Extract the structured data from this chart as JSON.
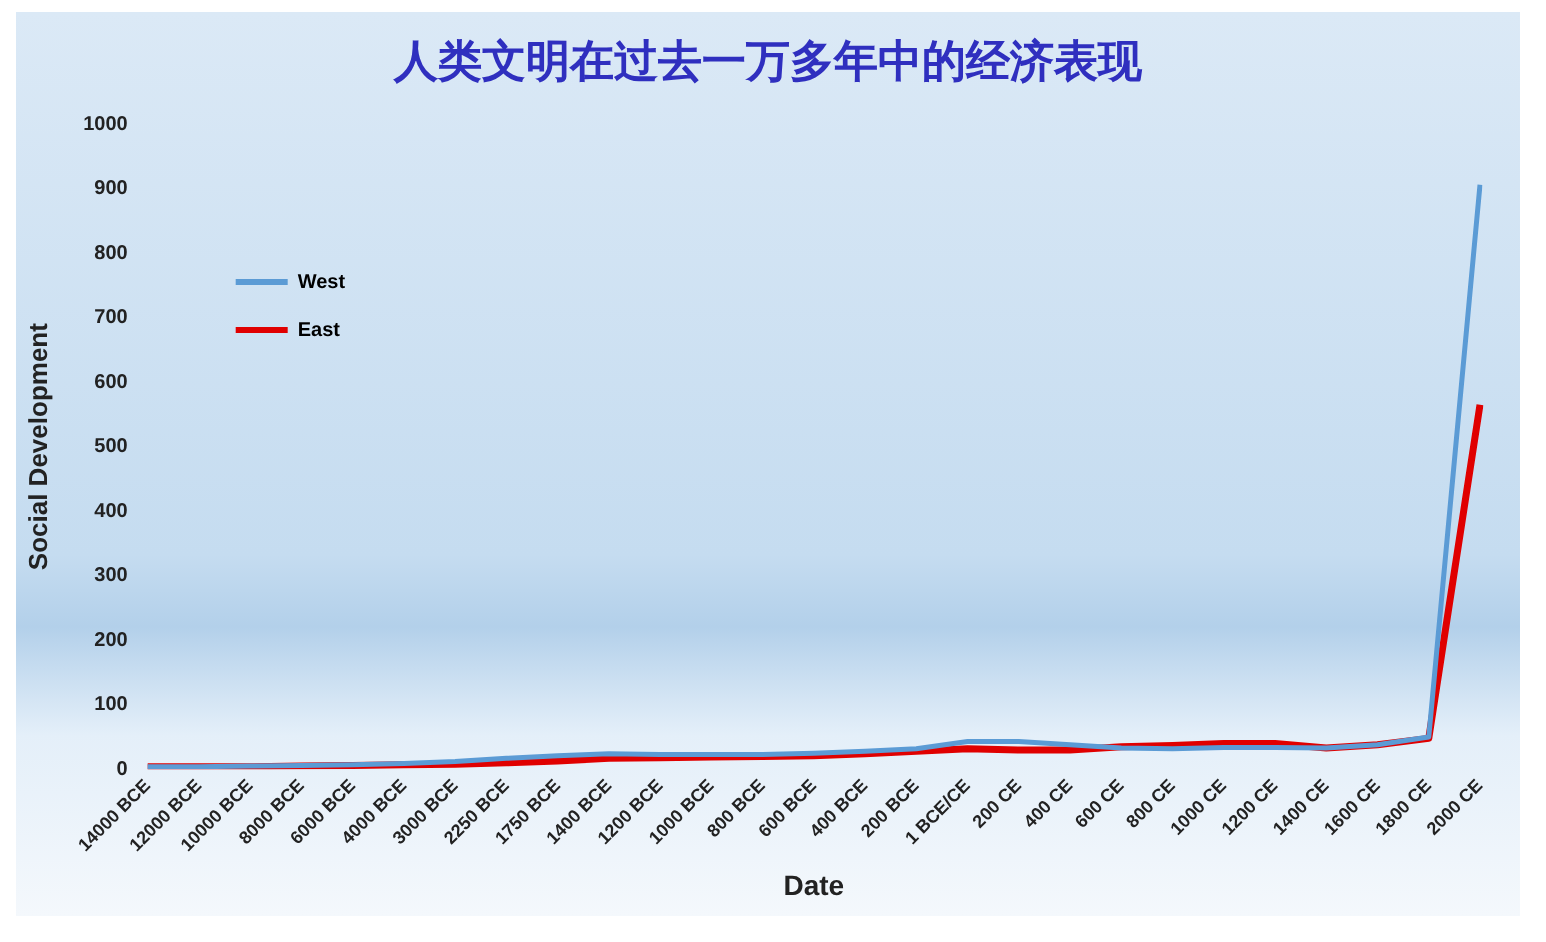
{
  "chart_data": {
    "type": "line",
    "title": "人类文明在过去一万多年中的经济表现",
    "xlabel": "Date",
    "ylabel": "Social Development",
    "categories": [
      "14000 BCE",
      "12000 BCE",
      "10000 BCE",
      "8000 BCE",
      "6000 BCE",
      "4000 BCE",
      "3000 BCE",
      "2250 BCE",
      "1750 BCE",
      "1400 BCE",
      "1200 BCE",
      "1000 BCE",
      "800 BCE",
      "600 BCE",
      "400 BCE",
      "200 BCE",
      "1 BCE/CE",
      "200 CE",
      "400 CE",
      "600 CE",
      "800 CE",
      "1000 CE",
      "1200 CE",
      "1400 CE",
      "1600 CE",
      "1800 CE",
      "2000 CE"
    ],
    "series": [
      {
        "name": "West",
        "color": "#5b9bd5",
        "values": [
          4,
          4,
          5,
          6,
          7,
          9,
          12,
          17,
          21,
          24,
          23,
          23,
          23,
          25,
          28,
          32,
          43,
          43,
          38,
          33,
          32,
          34,
          34,
          33,
          38,
          50,
          906
        ]
      },
      {
        "name": "East",
        "color": "#e00000",
        "values": [
          4,
          4,
          4,
          5,
          6,
          7,
          8,
          10,
          13,
          17,
          18,
          19,
          20,
          21,
          24,
          28,
          32,
          30,
          30,
          35,
          37,
          40,
          40,
          33,
          38,
          48,
          565
        ]
      }
    ],
    "ylim": [
      0,
      1000
    ],
    "yticks": [
      0,
      100,
      200,
      300,
      400,
      500,
      600,
      700,
      800,
      900,
      1000
    ],
    "grid": false,
    "legend": "top left",
    "marker": "none"
  }
}
